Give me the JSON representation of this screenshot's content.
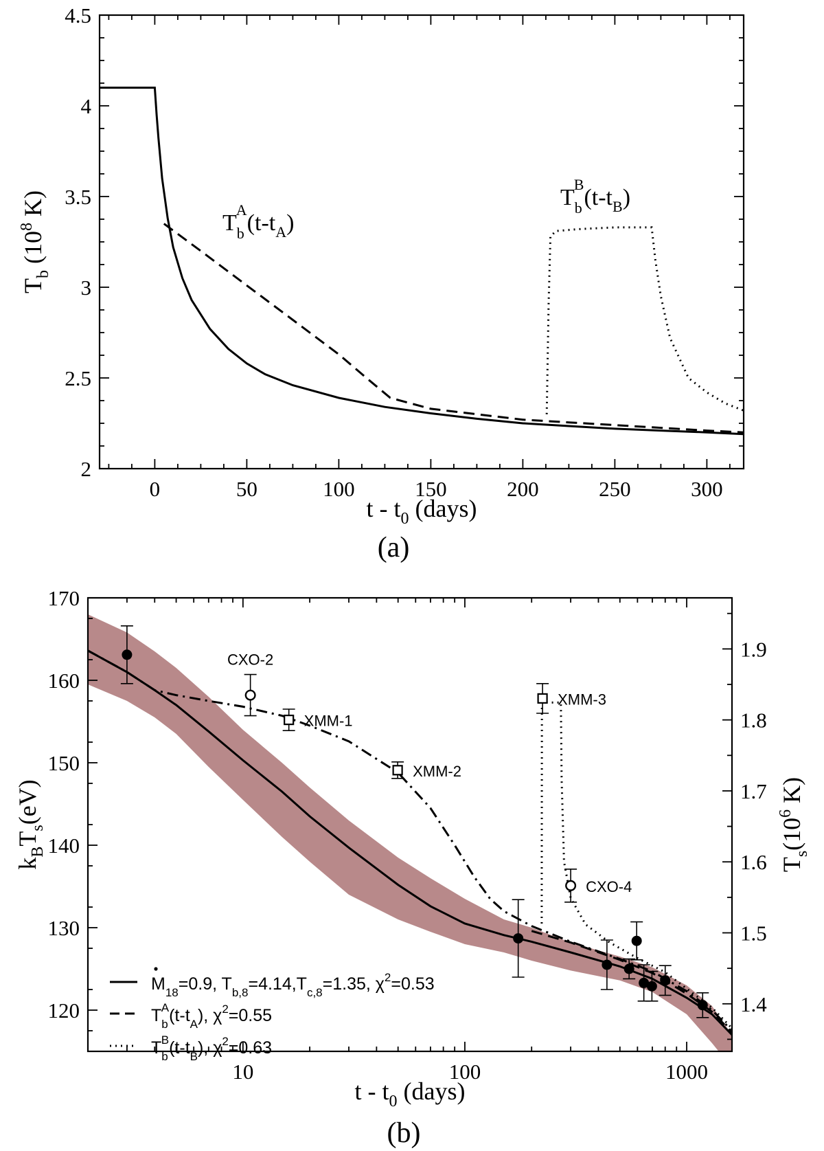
{
  "chart_data": [
    {
      "type": "line",
      "panel_label": "(a)",
      "xlabel": "t - t0 (days)",
      "ylabel": "Tb (10^8 K)",
      "xlim": [
        -30,
        320
      ],
      "ylim": [
        2,
        4.5
      ],
      "x_ticks": [
        "0",
        "50",
        "100",
        "150",
        "200",
        "250",
        "300"
      ],
      "y_ticks": [
        "2",
        "2.5",
        "3",
        "3.5",
        "4",
        "4.5"
      ],
      "grid": false,
      "annotations": [
        {
          "id": "A",
          "text": "Tb A(t-tA)",
          "main": "T",
          "sub": "b",
          "sup": "A",
          "tail": "(t-t",
          "tail_sub": "A",
          "close": ")"
        },
        {
          "id": "B",
          "text": "Tb B(t-tB)",
          "main": "T",
          "sub": "b",
          "sup": "B",
          "tail": "(t-t",
          "tail_sub": "B",
          "close": ")"
        }
      ],
      "series": [
        {
          "style": "solid",
          "x": [
            -30,
            -0.1,
            0,
            1,
            2,
            4,
            7,
            10,
            15,
            20,
            30,
            40,
            50,
            60,
            75,
            100,
            125,
            150,
            175,
            200,
            225,
            250,
            275,
            300,
            320
          ],
          "y": [
            4.1,
            4.1,
            4.1,
            3.95,
            3.82,
            3.6,
            3.38,
            3.22,
            3.05,
            2.93,
            2.77,
            2.66,
            2.58,
            2.52,
            2.46,
            2.39,
            2.34,
            2.305,
            2.275,
            2.25,
            2.235,
            2.22,
            2.21,
            2.2,
            2.19
          ]
        },
        {
          "style": "dashed",
          "x": [
            5,
            25,
            50,
            75,
            100,
            115,
            128,
            150,
            175,
            200,
            225,
            250,
            275,
            300,
            320
          ],
          "y": [
            3.35,
            3.2,
            3.01,
            2.82,
            2.63,
            2.5,
            2.39,
            2.33,
            2.3,
            2.27,
            2.255,
            2.24,
            2.225,
            2.21,
            2.2
          ]
        },
        {
          "style": "dotted",
          "x": [
            213,
            214,
            215,
            218,
            230,
            250,
            270,
            272,
            275,
            280,
            290,
            300,
            310,
            320
          ],
          "y": [
            2.3,
            2.9,
            3.28,
            3.31,
            3.32,
            3.33,
            3.33,
            3.15,
            2.95,
            2.72,
            2.5,
            2.42,
            2.36,
            2.32
          ]
        }
      ]
    },
    {
      "type": "scatter",
      "panel_label": "(b)",
      "xlabel": "t - t0 (days)",
      "ylabel": "kBTs(eV)",
      "ylabel_right": "Ts(10^6 K)",
      "x_scale": "log",
      "xlim": [
        2,
        1600
      ],
      "ylim": [
        115,
        170
      ],
      "y2lim": [
        1.333,
        1.972
      ],
      "x_ticks": [
        "10",
        "100",
        "1000"
      ],
      "y_ticks": [
        "120",
        "130",
        "140",
        "150",
        "160",
        "170"
      ],
      "y2_ticks": [
        "1.4",
        "1.5",
        "1.6",
        "1.7",
        "1.8",
        "1.9"
      ],
      "band_color": "#b8898a",
      "band": {
        "x": [
          2,
          3,
          4,
          5,
          7,
          10,
          15,
          20,
          30,
          50,
          70,
          100,
          150,
          200,
          300,
          500,
          700,
          1000,
          1300,
          1600
        ],
        "upper": [
          168,
          165.8,
          163.5,
          161.5,
          158,
          154,
          150,
          147,
          143,
          138.5,
          136,
          133.5,
          131,
          130,
          128.2,
          126.5,
          125.2,
          123,
          120.5,
          117
        ],
        "lower": [
          159.5,
          157.5,
          155.5,
          153.5,
          149.5,
          145.5,
          141,
          138,
          134,
          131,
          129.5,
          128,
          127,
          126,
          124.8,
          123.6,
          122.2,
          119.5,
          116,
          113
        ]
      },
      "legend": [
        {
          "style": "solid",
          "text": "Ṁ18=0.9, Tb,8=4.14,Tc,8=1.35, χ2=0.53"
        },
        {
          "style": "dashed",
          "text": "TbA(t-tA), χ2=0.55"
        },
        {
          "style": "dotted",
          "text": "TbB(t-tB), χ2=0.63"
        }
      ],
      "legend_placement": "bottom-left",
      "points": [
        {
          "x": 3.0,
          "y": 163.1,
          "err": 3.5,
          "marker": "filled-circle",
          "label": ""
        },
        {
          "x": 10.8,
          "y": 158.2,
          "err": 2.5,
          "marker": "open-circle",
          "label": "CXO-2"
        },
        {
          "x": 16.1,
          "y": 155.2,
          "err": 1.3,
          "marker": "open-square",
          "label": "XMM-1"
        },
        {
          "x": 49.8,
          "y": 149.1,
          "err": 1.0,
          "marker": "open-square",
          "label": "XMM-2"
        },
        {
          "x": 174,
          "y": 128.7,
          "err": 4.7,
          "marker": "filled-circle",
          "label": ""
        },
        {
          "x": 224,
          "y": 157.8,
          "err": 1.8,
          "marker": "open-square",
          "label": "XMM-3"
        },
        {
          "x": 300,
          "y": 135.1,
          "err": 2.0,
          "marker": "open-circle",
          "label": "CXO-4"
        },
        {
          "x": 437,
          "y": 125.5,
          "err": 3.0,
          "marker": "filled-circle",
          "label": ""
        },
        {
          "x": 550,
          "y": 125.0,
          "err": 1.2,
          "marker": "filled-circle",
          "label": ""
        },
        {
          "x": 595,
          "y": 128.4,
          "err": 2.3,
          "marker": "filled-circle",
          "label": ""
        },
        {
          "x": 641,
          "y": 123.3,
          "err": 2.2,
          "marker": "filled-circle",
          "label": ""
        },
        {
          "x": 697,
          "y": 122.9,
          "err": 1.8,
          "marker": "filled-circle",
          "label": ""
        },
        {
          "x": 800,
          "y": 123.6,
          "err": 1.8,
          "marker": "filled-circle",
          "label": ""
        },
        {
          "x": 1180,
          "y": 120.6,
          "err": 1.5,
          "marker": "filled-circle",
          "label": ""
        }
      ],
      "series": [
        {
          "style": "solid",
          "x": [
            2,
            3,
            4,
            5,
            7,
            10,
            15,
            20,
            30,
            50,
            70,
            100,
            150,
            200,
            300,
            500,
            700,
            1000,
            1300,
            1600
          ],
          "y": [
            163.6,
            161,
            158.8,
            157,
            153.8,
            150.3,
            146.5,
            143.5,
            139.7,
            135.2,
            132.6,
            130.5,
            129.1,
            128.3,
            127,
            125.3,
            123.8,
            121.5,
            119.5,
            117
          ]
        },
        {
          "style": "dashdot",
          "x": [
            2,
            3,
            4,
            5,
            7,
            10,
            15,
            20,
            30,
            50,
            70,
            90,
            110,
            130,
            150,
            200,
            300,
            500,
            700,
            1000,
            1300,
            1600
          ],
          "y": [
            163.6,
            161,
            158.8,
            158.2,
            157.5,
            156.8,
            155.7,
            154.5,
            152.6,
            148.8,
            144.5,
            140,
            136.2,
            133.5,
            132,
            130.2,
            128.3,
            126.2,
            124.7,
            122.3,
            120,
            117.5
          ]
        },
        {
          "style": "dashed",
          "x": [
            200,
            300,
            500,
            700,
            1000,
            1300,
            1600
          ],
          "y": [
            129.6,
            128.2,
            126.1,
            124.5,
            122,
            119.8,
            117.3
          ]
        },
        {
          "style": "dotted",
          "x": [
            222,
            222.5,
            226,
            250,
            271,
            273,
            280,
            300,
            350,
            450,
            600,
            800,
            1000,
            1300,
            1600
          ],
          "y": [
            130.5,
            157.3,
            157.3,
            157.3,
            157.3,
            148,
            138,
            133.6,
            130.4,
            128.2,
            126.3,
            124.6,
            122.6,
            120.3,
            117.8
          ]
        }
      ]
    }
  ]
}
